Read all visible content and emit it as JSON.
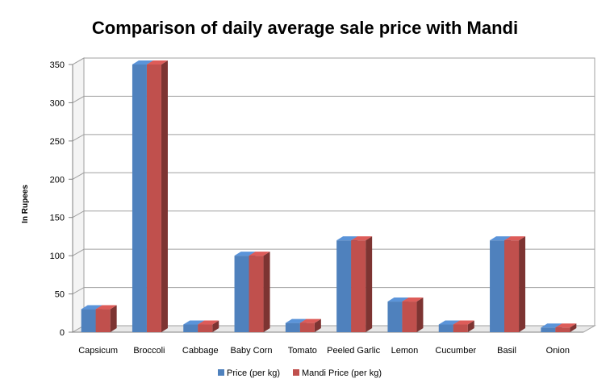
{
  "chart_data": {
    "type": "bar",
    "title": "Comparison of daily average sale price with Mandi",
    "xlabel": "",
    "ylabel": "In Rupees",
    "ylim": [
      0,
      350
    ],
    "yticks": [
      0,
      50,
      100,
      150,
      200,
      250,
      300,
      350
    ],
    "grid": true,
    "legend_position": "bottom",
    "categories": [
      "Capsicum",
      "Broccoli",
      "Cabbage",
      "Baby Corn",
      "Tomato",
      "Peeled Garlic",
      "Lemon",
      "Cucumber",
      "Basil",
      "Onion"
    ],
    "series": [
      {
        "name": "Price (per kg)",
        "color": "#4F81BD",
        "values": [
          30,
          350,
          10,
          100,
          12,
          120,
          40,
          10,
          120,
          6
        ]
      },
      {
        "name": "Mandi Price (per kg)",
        "color": "#C0504D",
        "values": [
          30,
          350,
          10,
          100,
          12,
          120,
          40,
          10,
          120,
          6
        ]
      }
    ]
  }
}
